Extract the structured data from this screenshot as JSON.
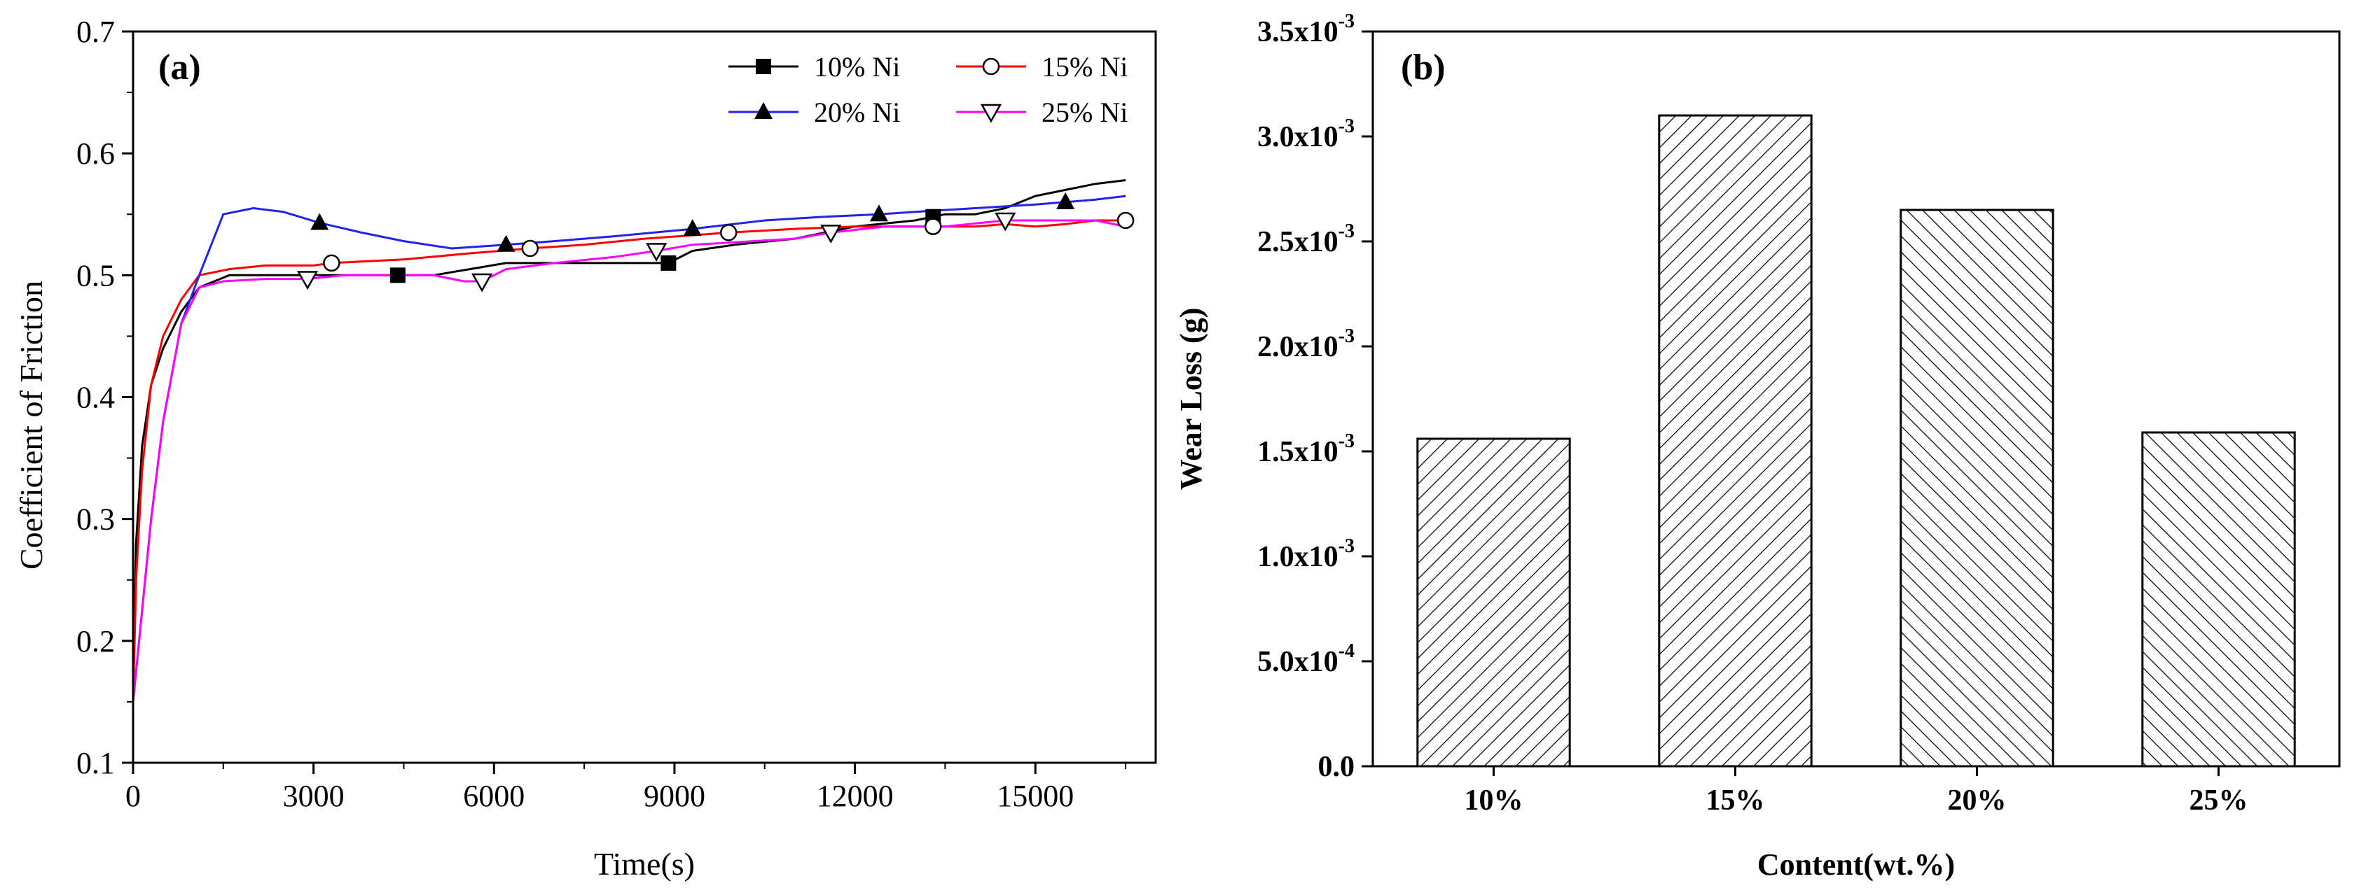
{
  "chart_data": [
    {
      "panel": "(a)",
      "type": "line",
      "xlabel": "Time(s)",
      "ylabel": "Coefficient of Friction",
      "xlim": [
        0,
        17000
      ],
      "ylim": [
        0.1,
        0.7
      ],
      "xticks": [
        0,
        3000,
        6000,
        9000,
        12000,
        15000
      ],
      "xtick_labels": [
        "0",
        "3000",
        "6000",
        "9000",
        "12000",
        "15000"
      ],
      "yticks": [
        0.1,
        0.2,
        0.3,
        0.4,
        0.5,
        0.6,
        0.7
      ],
      "ytick_labels": [
        "0.1",
        "0.2",
        "0.3",
        "0.4",
        "0.5",
        "0.6",
        "0.7"
      ],
      "legend_position": "top-right",
      "series": [
        {
          "name": "10% Ni",
          "color": "#000000",
          "marker": "square",
          "x": [
            0,
            50,
            150,
            300,
            500,
            800,
            1100,
            1600,
            2200,
            3000,
            3600,
            4400,
            5000,
            5600,
            6200,
            7000,
            7800,
            8500,
            8900,
            9300,
            10000,
            11000,
            12000,
            13000,
            13500,
            14000,
            14500,
            15000,
            15500,
            16000,
            16500
          ],
          "y": [
            0.16,
            0.28,
            0.36,
            0.41,
            0.44,
            0.47,
            0.49,
            0.5,
            0.5,
            0.5,
            0.5,
            0.5,
            0.5,
            0.505,
            0.51,
            0.51,
            0.51,
            0.51,
            0.51,
            0.52,
            0.525,
            0.53,
            0.54,
            0.545,
            0.55,
            0.55,
            0.555,
            0.565,
            0.57,
            0.575,
            0.578
          ],
          "markers_x": [
            4400,
            8900,
            13300
          ]
        },
        {
          "name": "15% Ni",
          "color": "#ff0000",
          "marker": "open-circle",
          "x": [
            0,
            50,
            150,
            300,
            500,
            800,
            1100,
            1600,
            2200,
            3000,
            3300,
            4500,
            5600,
            6600,
            7500,
            8500,
            9900,
            11000,
            12000,
            13000,
            13300,
            14000,
            14500,
            15000,
            15500,
            16000,
            16500
          ],
          "y": [
            0.15,
            0.25,
            0.34,
            0.41,
            0.45,
            0.48,
            0.5,
            0.505,
            0.508,
            0.508,
            0.51,
            0.513,
            0.518,
            0.522,
            0.525,
            0.53,
            0.535,
            0.538,
            0.54,
            0.54,
            0.54,
            0.54,
            0.542,
            0.54,
            0.542,
            0.545,
            0.545
          ],
          "markers_x": [
            3300,
            6600,
            9900,
            13300,
            16500
          ]
        },
        {
          "name": "20% Ni",
          "color": "#2222ee",
          "marker": "triangle",
          "x": [
            0,
            100,
            300,
            500,
            800,
            1100,
            1500,
            2000,
            2500,
            3100,
            3800,
            4500,
            5300,
            6200,
            7000,
            8000,
            9300,
            10500,
            11500,
            12400,
            13000,
            14000,
            15000,
            15500,
            16000,
            16500
          ],
          "y": [
            0.15,
            0.2,
            0.3,
            0.38,
            0.46,
            0.5,
            0.55,
            0.555,
            0.552,
            0.543,
            0.535,
            0.528,
            0.522,
            0.525,
            0.528,
            0.532,
            0.538,
            0.545,
            0.548,
            0.55,
            0.552,
            0.555,
            0.558,
            0.56,
            0.562,
            0.565
          ],
          "markers_x": [
            3100,
            6200,
            9300,
            12400,
            15500
          ]
        },
        {
          "name": "25% Ni",
          "color": "#ff00ff",
          "marker": "open-triangle-down",
          "x": [
            0,
            100,
            300,
            500,
            800,
            1100,
            1500,
            2200,
            2900,
            3500,
            4300,
            5000,
            5500,
            5800,
            6200,
            7000,
            8000,
            8700,
            9300,
            10000,
            11000,
            11600,
            12500,
            13500,
            14500,
            15500,
            16000,
            16500
          ],
          "y": [
            0.15,
            0.2,
            0.3,
            0.38,
            0.46,
            0.49,
            0.495,
            0.497,
            0.497,
            0.5,
            0.5,
            0.5,
            0.495,
            0.495,
            0.505,
            0.51,
            0.515,
            0.52,
            0.525,
            0.527,
            0.53,
            0.535,
            0.54,
            0.54,
            0.545,
            0.545,
            0.545,
            0.54
          ],
          "markers_x": [
            2900,
            5800,
            8700,
            11600,
            14500
          ]
        }
      ]
    },
    {
      "panel": "(b)",
      "type": "bar",
      "xlabel": "Content(wt.%)",
      "ylabel": "Wear Loss (g)",
      "categories": [
        "10%",
        "15%",
        "20%",
        "25%"
      ],
      "values": [
        0.00156,
        0.0031,
        0.00265,
        0.00159
      ],
      "bar_patterns": [
        "hatch-forward",
        "hatch-forward",
        "hatch-back",
        "hatch-back"
      ],
      "ylim": [
        0,
        0.0035
      ],
      "yticks": [
        0,
        0.0005,
        0.001,
        0.0015,
        0.002,
        0.0025,
        0.003,
        0.0035
      ],
      "ytick_labels": [
        {
          "base": "0.0",
          "exp": ""
        },
        {
          "base": "5.0x10",
          "exp": "-4"
        },
        {
          "base": "1.0x10",
          "exp": "-3"
        },
        {
          "base": "1.5x10",
          "exp": "-3"
        },
        {
          "base": "2.0x10",
          "exp": "-3"
        },
        {
          "base": "2.5x10",
          "exp": "-3"
        },
        {
          "base": "3.0x10",
          "exp": "-3"
        },
        {
          "base": "3.5x10",
          "exp": "-3"
        }
      ]
    }
  ]
}
